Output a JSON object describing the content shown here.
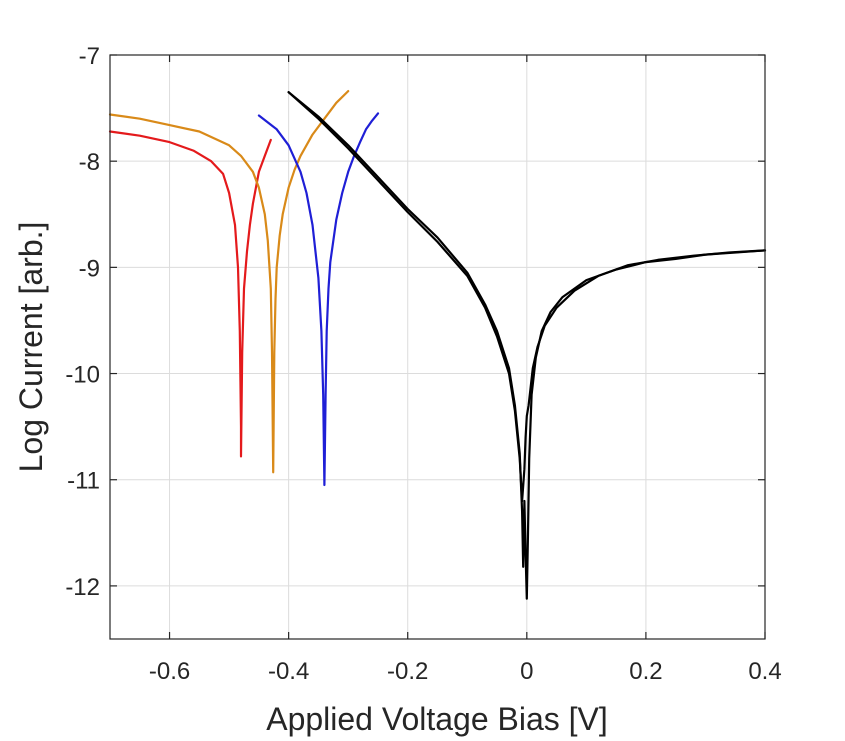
{
  "chart_data": {
    "type": "line",
    "title": "",
    "xlabel": "Applied Voltage Bias [V]",
    "ylabel": "Log Current [arb.]",
    "xlim": [
      -0.7,
      0.4
    ],
    "ylim": [
      -12.5,
      -7
    ],
    "xticks": [
      -0.6,
      -0.4,
      -0.2,
      0,
      0.2,
      0.4
    ],
    "xtick_labels": [
      "-0.6",
      "-0.4",
      "-0.2",
      "0",
      "0.2",
      "0.4"
    ],
    "yticks": [
      -7,
      -8,
      -9,
      -10,
      -11,
      -12
    ],
    "ytick_labels": [
      "-7",
      "-8",
      "-9",
      "-10",
      "-11",
      "-12"
    ],
    "grid": true,
    "series": [
      {
        "color": "#e41a1c",
        "x": [
          -0.7,
          -0.65,
          -0.6,
          -0.56,
          -0.53,
          -0.51,
          -0.5,
          -0.49,
          -0.485,
          -0.482,
          -0.48,
          -0.48,
          -0.478,
          -0.475,
          -0.47,
          -0.465,
          -0.46,
          -0.455,
          -0.45,
          -0.44,
          -0.43
        ],
        "y": [
          -7.72,
          -7.76,
          -7.82,
          -7.9,
          -8.0,
          -8.12,
          -8.3,
          -8.6,
          -9.0,
          -9.6,
          -10.5,
          -10.78,
          -9.8,
          -9.2,
          -8.85,
          -8.6,
          -8.4,
          -8.25,
          -8.1,
          -7.95,
          -7.8
        ]
      },
      {
        "color": "#d98a19",
        "x": [
          -0.7,
          -0.65,
          -0.6,
          -0.55,
          -0.5,
          -0.48,
          -0.46,
          -0.45,
          -0.44,
          -0.435,
          -0.43,
          -0.428,
          -0.426,
          -0.424,
          -0.422,
          -0.42,
          -0.415,
          -0.41,
          -0.4,
          -0.39,
          -0.38,
          -0.36,
          -0.34,
          -0.32,
          -0.3
        ],
        "y": [
          -7.56,
          -7.6,
          -7.66,
          -7.72,
          -7.85,
          -7.95,
          -8.1,
          -8.25,
          -8.5,
          -8.75,
          -9.2,
          -9.8,
          -10.93,
          -9.8,
          -9.3,
          -9.0,
          -8.7,
          -8.5,
          -8.25,
          -8.08,
          -7.95,
          -7.75,
          -7.6,
          -7.45,
          -7.34
        ]
      },
      {
        "color": "#1f1fd6",
        "x": [
          -0.45,
          -0.42,
          -0.4,
          -0.38,
          -0.37,
          -0.36,
          -0.35,
          -0.345,
          -0.342,
          -0.34,
          -0.338,
          -0.336,
          -0.333,
          -0.33,
          -0.32,
          -0.31,
          -0.3,
          -0.29,
          -0.28,
          -0.27,
          -0.26,
          -0.25
        ],
        "y": [
          -7.57,
          -7.7,
          -7.85,
          -8.1,
          -8.3,
          -8.6,
          -9.1,
          -9.6,
          -10.2,
          -11.05,
          -10.2,
          -9.6,
          -9.2,
          -8.95,
          -8.55,
          -8.3,
          -8.1,
          -7.95,
          -7.82,
          -7.7,
          -7.62,
          -7.55
        ]
      },
      {
        "color": "#000000",
        "x": [
          -0.4,
          -0.35,
          -0.3,
          -0.25,
          -0.2,
          -0.15,
          -0.1,
          -0.07,
          -0.05,
          -0.03,
          -0.02,
          -0.012,
          -0.008,
          -0.006,
          -0.004,
          -0.002,
          0.0,
          0.002,
          0.004,
          0.008,
          0.015,
          0.025,
          0.04,
          0.06,
          0.1,
          0.15,
          0.2,
          0.25,
          0.3,
          0.35,
          0.4
        ],
        "y": [
          -7.35,
          -7.58,
          -7.85,
          -8.15,
          -8.45,
          -8.72,
          -9.05,
          -9.35,
          -9.6,
          -9.95,
          -10.3,
          -10.75,
          -11.3,
          -11.82,
          -11.2,
          -11.7,
          -12.12,
          -11.5,
          -10.8,
          -10.2,
          -9.85,
          -9.6,
          -9.42,
          -9.28,
          -9.12,
          -9.02,
          -8.95,
          -8.92,
          -8.88,
          -8.86,
          -8.84
        ]
      },
      {
        "color": "#000000",
        "x": [
          -0.4,
          -0.35,
          -0.3,
          -0.25,
          -0.2,
          -0.15,
          -0.1,
          -0.07,
          -0.05,
          -0.03,
          -0.02,
          -0.012,
          -0.008,
          -0.004,
          -0.002,
          0.0,
          0.003,
          0.006,
          0.01,
          0.018,
          0.03,
          0.05,
          0.08,
          0.12,
          0.17,
          0.22,
          0.28,
          0.34,
          0.4
        ],
        "y": [
          -7.35,
          -7.6,
          -7.88,
          -8.18,
          -8.48,
          -8.76,
          -9.08,
          -9.38,
          -9.65,
          -10.0,
          -10.35,
          -10.8,
          -11.2,
          -10.9,
          -10.6,
          -10.4,
          -10.3,
          -10.15,
          -9.95,
          -9.75,
          -9.55,
          -9.38,
          -9.22,
          -9.08,
          -8.98,
          -8.93,
          -8.89,
          -8.86,
          -8.84
        ]
      }
    ]
  }
}
